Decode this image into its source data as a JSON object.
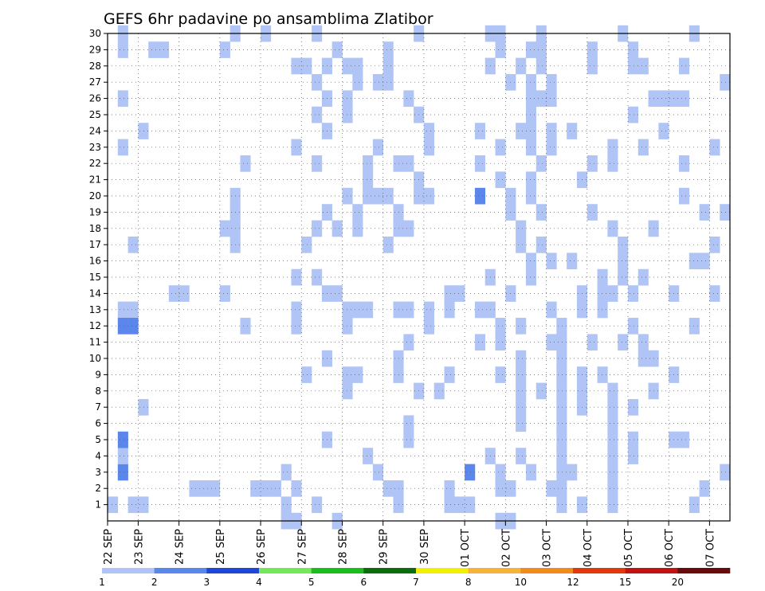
{
  "chart_data": {
    "type": "heatmap",
    "title": "GEFS 6hr padavine po ansamblima Zlatibor",
    "x_labels": [
      "22 SEP",
      "23 SEP",
      "24 SEP",
      "25 SEP",
      "26 SEP",
      "27 SEP",
      "28 SEP",
      "29 SEP",
      "30 SEP",
      "01 OCT",
      "02 OCT",
      "03 OCT",
      "04 OCT",
      "05 OCT",
      "06 OCT",
      "07 OCT"
    ],
    "y_labels": [
      "1",
      "2",
      "3",
      "4",
      "5",
      "6",
      "7",
      "8",
      "9",
      "10",
      "11",
      "12",
      "13",
      "14",
      "15",
      "16",
      "17",
      "18",
      "19",
      "20",
      "21",
      "22",
      "23",
      "24",
      "25",
      "26",
      "27",
      "28",
      "29",
      "30"
    ],
    "steps_per_day": 4,
    "x_range_steps": [
      0,
      61
    ],
    "y_range": [
      0,
      30
    ],
    "grid": true,
    "legend": {
      "placement": "bottom",
      "labels": [
        "1",
        "2",
        "3",
        "4",
        "5",
        "6",
        "7",
        "8",
        "10",
        "12",
        "15",
        "20"
      ],
      "colors": [
        "#b0c4f5",
        "#5b86ec",
        "#1f46d6",
        "#73e95a",
        "#1bbf1b",
        "#0b6d0b",
        "#f0f000",
        "#f7b23b",
        "#f28a1c",
        "#e2380c",
        "#c11313",
        "#6b0a0a"
      ]
    },
    "cells": [
      [
        3,
        0,
        1
      ],
      [
        3,
        1,
        26
      ],
      [
        3,
        1,
        23
      ],
      [
        3,
        1,
        29
      ],
      [
        3,
        1,
        30
      ],
      [
        4,
        1,
        3
      ],
      [
        3,
        1,
        4
      ],
      [
        3,
        1,
        13
      ],
      [
        4,
        1,
        5
      ],
      [
        4,
        1,
        12
      ],
      [
        3,
        2,
        1
      ],
      [
        3,
        2,
        13
      ],
      [
        3,
        2,
        17
      ],
      [
        4,
        2,
        12
      ],
      [
        3,
        3,
        1
      ],
      [
        3,
        3,
        24
      ],
      [
        3,
        3,
        7
      ],
      [
        3,
        4,
        29
      ],
      [
        3,
        5,
        29
      ],
      [
        3,
        6,
        14
      ],
      [
        3,
        7,
        14
      ],
      [
        3,
        8,
        2
      ],
      [
        3,
        9,
        2
      ],
      [
        3,
        10,
        2
      ],
      [
        3,
        11,
        29
      ],
      [
        3,
        11,
        18
      ],
      [
        3,
        11,
        14
      ],
      [
        3,
        12,
        30
      ],
      [
        3,
        12,
        19
      ],
      [
        3,
        12,
        20
      ],
      [
        3,
        12,
        17
      ],
      [
        3,
        12,
        18
      ],
      [
        3,
        13,
        22
      ],
      [
        3,
        13,
        12
      ],
      [
        3,
        14,
        2
      ],
      [
        3,
        15,
        30
      ],
      [
        3,
        15,
        2
      ],
      [
        3,
        16,
        2
      ],
      [
        3,
        17,
        0
      ],
      [
        3,
        17,
        1
      ],
      [
        3,
        17,
        3
      ],
      [
        3,
        18,
        0
      ],
      [
        3,
        18,
        2
      ],
      [
        3,
        18,
        12
      ],
      [
        3,
        18,
        13
      ],
      [
        3,
        18,
        15
      ],
      [
        3,
        18,
        28
      ],
      [
        3,
        18,
        23
      ],
      [
        3,
        19,
        9
      ],
      [
        3,
        19,
        17
      ],
      [
        3,
        19,
        28
      ],
      [
        3,
        20,
        1
      ],
      [
        3,
        20,
        15
      ],
      [
        3,
        20,
        22
      ],
      [
        3,
        20,
        25
      ],
      [
        3,
        20,
        27
      ],
      [
        3,
        20,
        30
      ],
      [
        3,
        20,
        18
      ],
      [
        3,
        21,
        14
      ],
      [
        3,
        21,
        28
      ],
      [
        3,
        21,
        5
      ],
      [
        3,
        21,
        10
      ],
      [
        3,
        21,
        26
      ],
      [
        3,
        21,
        24
      ],
      [
        3,
        21,
        19
      ],
      [
        3,
        22,
        0
      ],
      [
        3,
        22,
        29
      ],
      [
        3,
        22,
        14
      ],
      [
        3,
        22,
        18
      ],
      [
        3,
        23,
        9
      ],
      [
        3,
        23,
        8
      ],
      [
        3,
        23,
        12
      ],
      [
        3,
        23,
        13
      ],
      [
        3,
        23,
        20
      ],
      [
        3,
        23,
        25
      ],
      [
        3,
        23,
        26
      ],
      [
        3,
        23,
        28
      ],
      [
        3,
        24,
        13
      ],
      [
        3,
        24,
        9
      ],
      [
        3,
        24,
        18
      ],
      [
        3,
        24,
        19
      ],
      [
        3,
        24,
        27
      ],
      [
        3,
        24,
        28
      ],
      [
        3,
        25,
        13
      ],
      [
        3,
        25,
        22
      ],
      [
        3,
        25,
        21
      ],
      [
        3,
        25,
        20
      ],
      [
        3,
        25,
        4
      ],
      [
        3,
        26,
        27
      ],
      [
        3,
        26,
        20
      ],
      [
        3,
        26,
        3
      ],
      [
        3,
        26,
        23
      ],
      [
        3,
        27,
        20
      ],
      [
        3,
        27,
        29
      ],
      [
        3,
        27,
        27
      ],
      [
        3,
        27,
        28
      ],
      [
        3,
        27,
        2
      ],
      [
        3,
        27,
        17
      ],
      [
        3,
        28,
        10
      ],
      [
        3,
        28,
        1
      ],
      [
        3,
        28,
        22
      ],
      [
        3,
        28,
        18
      ],
      [
        3,
        28,
        9
      ],
      [
        3,
        28,
        13
      ],
      [
        3,
        28,
        19
      ],
      [
        3,
        28,
        2
      ],
      [
        3,
        29,
        22
      ],
      [
        3,
        29,
        18
      ],
      [
        3,
        29,
        11
      ],
      [
        3,
        29,
        26
      ],
      [
        3,
        29,
        6
      ],
      [
        3,
        29,
        5
      ],
      [
        3,
        29,
        13
      ],
      [
        3,
        30,
        30
      ],
      [
        3,
        30,
        25
      ],
      [
        3,
        30,
        21
      ],
      [
        3,
        30,
        20
      ],
      [
        3,
        30,
        8
      ],
      [
        3,
        31,
        12
      ],
      [
        3,
        31,
        13
      ],
      [
        3,
        31,
        20
      ],
      [
        3,
        31,
        23
      ],
      [
        3,
        31,
        24
      ],
      [
        3,
        32,
        8
      ],
      [
        3,
        33,
        14
      ],
      [
        3,
        33,
        13
      ],
      [
        3,
        33,
        9
      ],
      [
        3,
        33,
        2
      ],
      [
        3,
        33,
        1
      ],
      [
        3,
        34,
        14
      ],
      [
        3,
        34,
        1
      ],
      [
        3,
        35,
        1
      ],
      [
        4,
        35,
        3
      ],
      [
        3,
        36,
        11
      ],
      [
        3,
        36,
        13
      ],
      [
        3,
        36,
        22
      ],
      [
        4,
        36,
        20
      ],
      [
        3,
        36,
        24
      ],
      [
        3,
        37,
        28
      ],
      [
        3,
        37,
        15
      ],
      [
        3,
        37,
        30
      ],
      [
        3,
        37,
        13
      ],
      [
        3,
        37,
        4
      ],
      [
        3,
        38,
        0
      ],
      [
        3,
        38,
        23
      ],
      [
        3,
        38,
        21
      ],
      [
        3,
        38,
        12
      ],
      [
        3,
        38,
        11
      ],
      [
        3,
        38,
        29
      ],
      [
        3,
        38,
        2
      ],
      [
        3,
        38,
        3
      ],
      [
        3,
        38,
        30
      ],
      [
        3,
        38,
        9
      ],
      [
        3,
        39,
        0
      ],
      [
        3,
        39,
        27
      ],
      [
        3,
        39,
        19
      ],
      [
        3,
        39,
        20
      ],
      [
        3,
        39,
        14
      ],
      [
        3,
        39,
        2
      ],
      [
        3,
        40,
        4
      ],
      [
        3,
        40,
        8
      ],
      [
        3,
        40,
        6
      ],
      [
        3,
        40,
        12
      ],
      [
        3,
        40,
        9
      ],
      [
        3,
        40,
        17
      ],
      [
        3,
        40,
        18
      ],
      [
        3,
        40,
        10
      ],
      [
        3,
        40,
        7
      ],
      [
        3,
        40,
        28
      ],
      [
        3,
        40,
        24
      ],
      [
        3,
        41,
        26
      ],
      [
        3,
        41,
        27
      ],
      [
        3,
        41,
        20
      ],
      [
        3,
        41,
        25
      ],
      [
        3,
        41,
        29
      ],
      [
        3,
        41,
        24
      ],
      [
        3,
        41,
        3
      ],
      [
        3,
        41,
        15
      ],
      [
        3,
        41,
        16
      ],
      [
        3,
        41,
        23
      ],
      [
        3,
        41,
        21
      ],
      [
        3,
        42,
        17
      ],
      [
        3,
        42,
        29
      ],
      [
        3,
        42,
        8
      ],
      [
        3,
        42,
        19
      ],
      [
        3,
        42,
        30
      ],
      [
        3,
        42,
        26
      ],
      [
        3,
        42,
        28
      ],
      [
        3,
        42,
        22
      ],
      [
        3,
        43,
        24
      ],
      [
        3,
        43,
        23
      ],
      [
        3,
        43,
        26
      ],
      [
        3,
        43,
        27
      ],
      [
        3,
        43,
        13
      ],
      [
        3,
        43,
        2
      ],
      [
        3,
        43,
        16
      ],
      [
        3,
        43,
        11
      ],
      [
        3,
        44,
        1
      ],
      [
        3,
        44,
        2
      ],
      [
        3,
        44,
        3
      ],
      [
        3,
        44,
        4
      ],
      [
        3,
        44,
        5
      ],
      [
        3,
        44,
        6
      ],
      [
        3,
        44,
        7
      ],
      [
        3,
        44,
        8
      ],
      [
        3,
        44,
        9
      ],
      [
        3,
        44,
        10
      ],
      [
        3,
        44,
        11
      ],
      [
        3,
        44,
        12
      ],
      [
        3,
        45,
        3
      ],
      [
        3,
        45,
        16
      ],
      [
        3,
        45,
        24
      ],
      [
        3,
        46,
        13
      ],
      [
        3,
        46,
        21
      ],
      [
        3,
        46,
        14
      ],
      [
        3,
        46,
        8
      ],
      [
        3,
        46,
        9
      ],
      [
        3,
        46,
        1
      ],
      [
        3,
        46,
        7
      ],
      [
        3,
        47,
        11
      ],
      [
        3,
        47,
        19
      ],
      [
        3,
        47,
        22
      ],
      [
        3,
        47,
        28
      ],
      [
        3,
        47,
        29
      ],
      [
        3,
        48,
        9
      ],
      [
        3,
        48,
        15
      ],
      [
        3,
        48,
        13
      ],
      [
        3,
        48,
        14
      ],
      [
        3,
        49,
        1
      ],
      [
        3,
        49,
        2
      ],
      [
        3,
        49,
        3
      ],
      [
        3,
        49,
        4
      ],
      [
        3,
        49,
        5
      ],
      [
        3,
        49,
        6
      ],
      [
        3,
        49,
        7
      ],
      [
        3,
        49,
        8
      ],
      [
        3,
        49,
        14
      ],
      [
        3,
        49,
        18
      ],
      [
        3,
        49,
        22
      ],
      [
        3,
        49,
        23
      ],
      [
        3,
        50,
        11
      ],
      [
        3,
        50,
        17
      ],
      [
        3,
        50,
        30
      ],
      [
        3,
        50,
        16
      ],
      [
        3,
        50,
        15
      ],
      [
        3,
        51,
        14
      ],
      [
        3,
        51,
        12
      ],
      [
        3,
        51,
        5
      ],
      [
        3,
        51,
        4
      ],
      [
        3,
        51,
        7
      ],
      [
        3,
        51,
        25
      ],
      [
        3,
        51,
        28
      ],
      [
        3,
        51,
        29
      ],
      [
        3,
        52,
        10
      ],
      [
        3,
        52,
        11
      ],
      [
        3,
        52,
        15
      ],
      [
        3,
        52,
        28
      ],
      [
        3,
        52,
        23
      ],
      [
        3,
        53,
        10
      ],
      [
        3,
        53,
        8
      ],
      [
        3,
        53,
        18
      ],
      [
        3,
        53,
        26
      ],
      [
        3,
        54,
        24
      ],
      [
        3,
        54,
        26
      ],
      [
        3,
        55,
        5
      ],
      [
        3,
        55,
        9
      ],
      [
        3,
        55,
        14
      ],
      [
        3,
        55,
        26
      ],
      [
        3,
        56,
        26
      ],
      [
        3,
        56,
        22
      ],
      [
        3,
        56,
        5
      ],
      [
        3,
        56,
        20
      ],
      [
        3,
        56,
        28
      ],
      [
        3,
        57,
        1
      ],
      [
        3,
        57,
        16
      ],
      [
        3,
        57,
        30
      ],
      [
        3,
        57,
        12
      ],
      [
        3,
        58,
        19
      ],
      [
        3,
        58,
        16
      ],
      [
        3,
        58,
        2
      ],
      [
        3,
        59,
        17
      ],
      [
        3,
        59,
        14
      ],
      [
        3,
        59,
        23
      ],
      [
        3,
        60,
        3
      ],
      [
        3,
        60,
        19
      ],
      [
        3,
        60,
        27
      ]
    ]
  }
}
